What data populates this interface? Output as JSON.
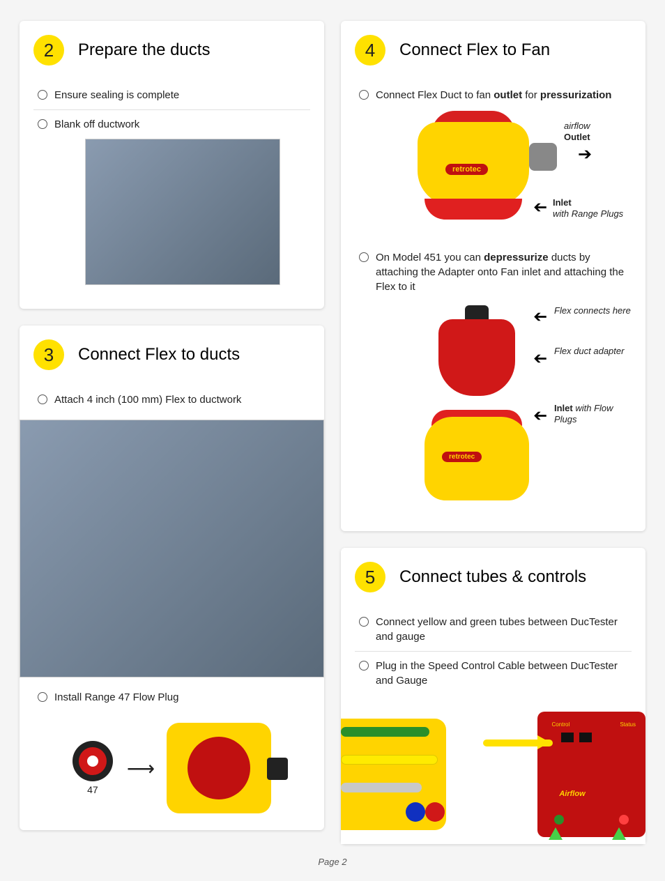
{
  "page_label": "Page 2",
  "colors": {
    "badge_bg": "#ffe100",
    "fan_yellow": "#ffd400",
    "fan_red": "#d72020",
    "card_bg": "#ffffff",
    "page_bg": "#f5f5f5"
  },
  "left_column": [
    {
      "number": "2",
      "title": "Prepare the ducts",
      "items": [
        {
          "text": "Ensure sealing is complete"
        },
        {
          "text": "Blank off ductwork"
        }
      ],
      "photo_alt": "ductwork photo"
    },
    {
      "number": "3",
      "title": "Connect Flex to ducts",
      "items": [
        {
          "text": "Attach 4 inch (100 mm) Flex to ductwork"
        },
        {
          "text": "Install Range 47 Flow Plug"
        }
      ],
      "photo_alt": "flex attached to duct via lift",
      "plug_number": "47"
    }
  ],
  "right_column": [
    {
      "number": "4",
      "title": "Connect Flex to Fan",
      "items": [
        {
          "html": "Connect Flex Duct to fan <b>outlet</b> for <b>pressurization</b>"
        },
        {
          "html": "On Model 451 you can <b>depressurize</b> ducts by attaching the Adapter onto Fan inlet and attaching the Flex to it"
        }
      ],
      "fan_brand": "retrotec",
      "ann": {
        "airflow": "airflow",
        "outlet": "Outlet",
        "inlet": "Inlet",
        "range_plugs": "with Range Plugs",
        "flex_connects": "Flex connects here",
        "flex_adapter": "Flex duct adapter",
        "inlet_flow": "Inlet",
        "flow_plugs": "with Flow Plugs"
      }
    },
    {
      "number": "5",
      "title": "Connect tubes & controls",
      "items": [
        {
          "text": "Connect yellow and green tubes between DucTester and gauge"
        },
        {
          "text": "Plug in the Speed Control Cable between DucTester and Gauge"
        }
      ],
      "panel_airflow_label": "Airflow",
      "panel_control_label": "Control",
      "panel_status_label": "Status"
    }
  ]
}
